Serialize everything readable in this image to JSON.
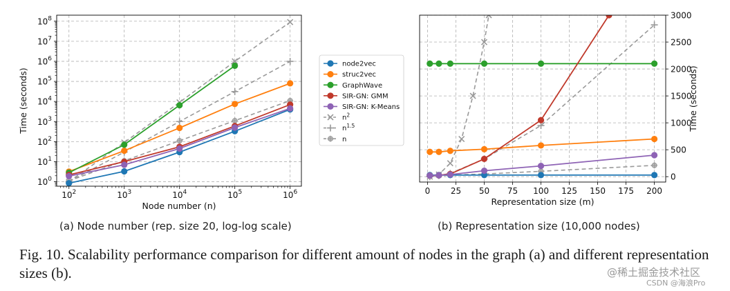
{
  "legend": [
    {
      "label": "node2vec",
      "color": "#1f77b4",
      "marker": "circle"
    },
    {
      "label": "struc2vec",
      "color": "#ff7f0e",
      "marker": "circle"
    },
    {
      "label": "GraphWave",
      "color": "#2ca02c",
      "marker": "circle"
    },
    {
      "label": "SIR-GN: GMM",
      "color": "#c0392b",
      "marker": "circle"
    },
    {
      "label": "SIR-GN: K-Means",
      "color": "#8e63b5",
      "marker": "circle"
    },
    {
      "label": "n",
      "sup": "2",
      "color": "#999999",
      "marker": "x"
    },
    {
      "label": "n",
      "sup": "1.5",
      "color": "#999999",
      "marker": "plus"
    },
    {
      "label": "n",
      "sup": "",
      "color": "#999999",
      "marker": "star"
    }
  ],
  "chart_data": [
    {
      "type": "line",
      "caption": "(a) Node number (rep. size 20, log-log scale)",
      "xlabel": "Node number (n)",
      "ylabel": "Time (seconds)",
      "xscale": "log",
      "yscale": "log",
      "xlim": [
        60,
        1600000
      ],
      "ylim": [
        0.6,
        200000000
      ],
      "xticks": [
        {
          "base": "10",
          "exp": "2",
          "v": 100
        },
        {
          "base": "10",
          "exp": "3",
          "v": 1000
        },
        {
          "base": "10",
          "exp": "4",
          "v": 10000
        },
        {
          "base": "10",
          "exp": "5",
          "v": 100000
        },
        {
          "base": "10",
          "exp": "6",
          "v": 1000000
        }
      ],
      "yticks": [
        {
          "base": "10",
          "exp": "0",
          "v": 1
        },
        {
          "base": "10",
          "exp": "1",
          "v": 10
        },
        {
          "base": "10",
          "exp": "2",
          "v": 100
        },
        {
          "base": "10",
          "exp": "3",
          "v": 1000
        },
        {
          "base": "10",
          "exp": "4",
          "v": 10000
        },
        {
          "base": "10",
          "exp": "5",
          "v": 100000
        },
        {
          "base": "10",
          "exp": "6",
          "v": 1000000
        },
        {
          "base": "10",
          "exp": "7",
          "v": 10000000
        },
        {
          "base": "10",
          "exp": "8",
          "v": 100000000
        }
      ],
      "grid": true,
      "series": [
        {
          "name": "node2vec",
          "x": [
            100,
            1000,
            10000,
            100000,
            1000000
          ],
          "values": [
            0.85,
            3.3,
            30,
            330,
            4000
          ]
        },
        {
          "name": "struc2vec",
          "x": [
            100,
            1000,
            10000,
            100000,
            1000000
          ],
          "values": [
            3.2,
            35,
            480,
            7500,
            80000
          ]
        },
        {
          "name": "GraphWave",
          "x": [
            100,
            1000,
            10000,
            100000
          ],
          "values": [
            2.8,
            70,
            6500,
            600000
          ]
        },
        {
          "name": "SIR-GN: GMM",
          "x": [
            100,
            1000,
            10000,
            100000,
            1000000
          ],
          "values": [
            2.2,
            10,
            55,
            600,
            7000
          ]
        },
        {
          "name": "SIR-GN: K-Means",
          "x": [
            100,
            1000,
            10000,
            100000,
            1000000
          ],
          "values": [
            1.9,
            7,
            45,
            500,
            4500
          ]
        },
        {
          "name": "n2",
          "x": [
            100,
            1000,
            10000,
            100000,
            1000000
          ],
          "values": [
            9,
            900,
            90000,
            9000000,
            900000000
          ],
          "scaled_to": [
            100,
            1000,
            10000,
            100000,
            1000000
          ],
          "plot_values": [
            1.0,
            90,
            9000,
            1000000,
            90000000
          ]
        },
        {
          "name": "n1.5",
          "x": [
            100,
            1000,
            10000,
            100000,
            1000000
          ],
          "values": [
            1,
            30,
            1000,
            31000,
            1000000
          ]
        },
        {
          "name": "n",
          "x": [
            100,
            1000,
            10000,
            100000,
            1000000
          ],
          "values": [
            1.1,
            11,
            110,
            1100,
            11000
          ]
        }
      ]
    },
    {
      "type": "line",
      "caption": "(b) Representation size (10,000 nodes)",
      "xlabel": "Representation size (m)",
      "ylabel": "Time (seconds)",
      "xlim": [
        -7,
        210
      ],
      "ylim": [
        -100,
        3000
      ],
      "xticks": [
        0,
        25,
        50,
        75,
        100,
        125,
        150,
        175,
        200
      ],
      "yticks": [
        0,
        500,
        1000,
        1500,
        2000,
        2500,
        3000
      ],
      "y_axis_side": "right",
      "grid": true,
      "series": [
        {
          "name": "node2vec",
          "x": [
            2,
            10,
            20,
            50,
            100,
            200
          ],
          "values": [
            30,
            30,
            30,
            30,
            30,
            30
          ]
        },
        {
          "name": "struc2vec",
          "x": [
            2,
            10,
            20,
            50,
            100,
            200
          ],
          "values": [
            460,
            460,
            480,
            510,
            580,
            700
          ]
        },
        {
          "name": "GraphWave",
          "x": [
            2,
            10,
            20,
            50,
            100,
            200
          ],
          "values": [
            2100,
            2100,
            2100,
            2100,
            2100,
            2100
          ]
        },
        {
          "name": "SIR-GN: GMM",
          "x": [
            2,
            10,
            20,
            50,
            100,
            160
          ],
          "values": [
            20,
            25,
            50,
            330,
            1050,
            3000
          ]
        },
        {
          "name": "SIR-GN: K-Means",
          "x": [
            2,
            10,
            20,
            50,
            100,
            200
          ],
          "values": [
            20,
            25,
            40,
            110,
            200,
            400
          ]
        },
        {
          "name": "n2",
          "x": [
            2,
            10,
            20,
            30,
            40,
            50,
            54
          ],
          "values": [
            0,
            40,
            250,
            700,
            1500,
            2500,
            3000
          ]
        },
        {
          "name": "n1.5",
          "x": [
            2,
            10,
            20,
            50,
            100,
            200
          ],
          "values": [
            0,
            20,
            60,
            330,
            950,
            2820
          ]
        },
        {
          "name": "n",
          "x": [
            2,
            10,
            20,
            50,
            100,
            200
          ],
          "values": [
            10,
            15,
            30,
            50,
            100,
            210
          ]
        }
      ]
    }
  ],
  "figure_caption": "Fig. 10.  Scalability performance comparison for different amount of nodes in the graph (a) and different representation sizes (b).",
  "watermark": {
    "line1": "@稀土掘金技术社区",
    "line2": "CSDN @海浪Pro"
  }
}
